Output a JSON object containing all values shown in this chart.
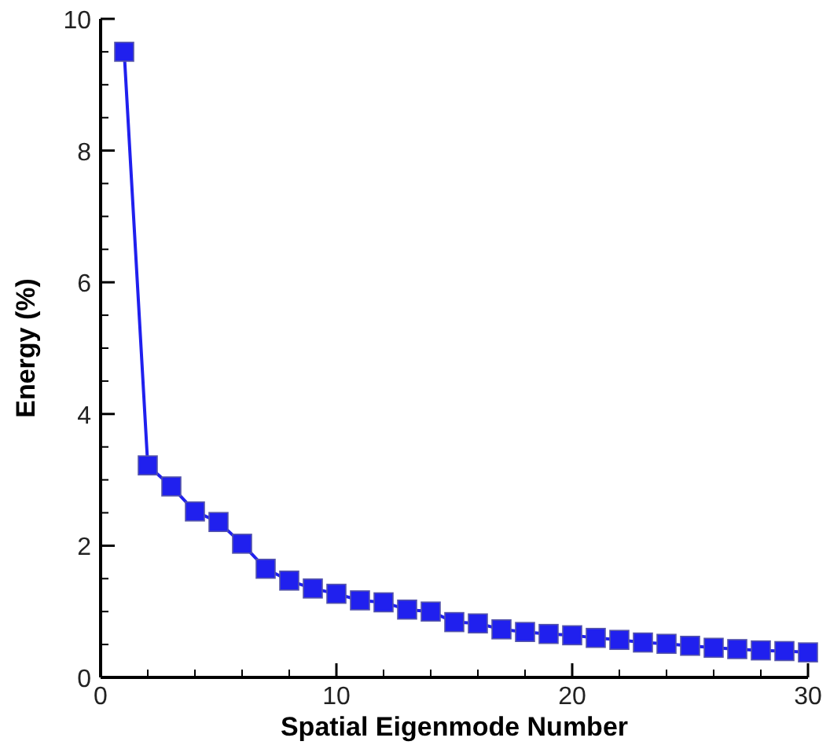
{
  "chart_data": {
    "type": "line",
    "xlabel": "Spatial Eigenmode Number",
    "ylabel": "Energy (%)",
    "x": [
      1,
      2,
      3,
      4,
      5,
      6,
      7,
      8,
      9,
      10,
      11,
      12,
      13,
      14,
      15,
      16,
      17,
      18,
      19,
      20,
      21,
      22,
      23,
      24,
      25,
      26,
      27,
      28,
      29,
      30
    ],
    "series": [
      {
        "color": "#2020ee",
        "values": [
          9.5,
          3.22,
          2.9,
          2.52,
          2.36,
          2.03,
          1.65,
          1.47,
          1.35,
          1.27,
          1.17,
          1.14,
          1.03,
          1.0,
          0.84,
          0.82,
          0.73,
          0.69,
          0.66,
          0.64,
          0.6,
          0.57,
          0.53,
          0.51,
          0.48,
          0.45,
          0.43,
          0.41,
          0.4,
          0.38
        ]
      }
    ],
    "xlim": [
      0,
      30
    ],
    "ylim": [
      0,
      10
    ],
    "xticks": [
      0,
      {
        "value": 2,
        "label": null
      },
      {
        "value": 4,
        "label": null
      },
      {
        "value": 6,
        "label": null
      },
      {
        "value": 8,
        "label": null
      },
      10,
      {
        "value": 12,
        "label": null
      },
      {
        "value": 14,
        "label": null
      },
      {
        "value": 16,
        "label": null
      },
      {
        "value": 18,
        "label": null
      },
      20,
      {
        "value": 22,
        "label": null
      },
      {
        "value": 24,
        "label": null
      },
      {
        "value": 26,
        "label": null
      },
      {
        "value": 28,
        "label": null
      },
      30
    ],
    "yticks": [
      0,
      {
        "value": 0.5,
        "label": null
      },
      {
        "value": 1,
        "label": null
      },
      {
        "value": 1.5,
        "label": null
      },
      2,
      {
        "value": 2.5,
        "label": null
      },
      {
        "value": 3,
        "label": null
      },
      {
        "value": 3.5,
        "label": null
      },
      4,
      {
        "value": 4.5,
        "label": null
      },
      {
        "value": 5,
        "label": null
      },
      {
        "value": 5.5,
        "label": null
      },
      6,
      {
        "value": 6.5,
        "label": null
      },
      {
        "value": 7,
        "label": null
      },
      {
        "value": 7.5,
        "label": null
      },
      8,
      {
        "value": 8.5,
        "label": null
      },
      {
        "value": 9,
        "label": null
      },
      {
        "value": 9.5,
        "label": null
      },
      10
    ],
    "marker": "square",
    "line_style": "solid"
  }
}
